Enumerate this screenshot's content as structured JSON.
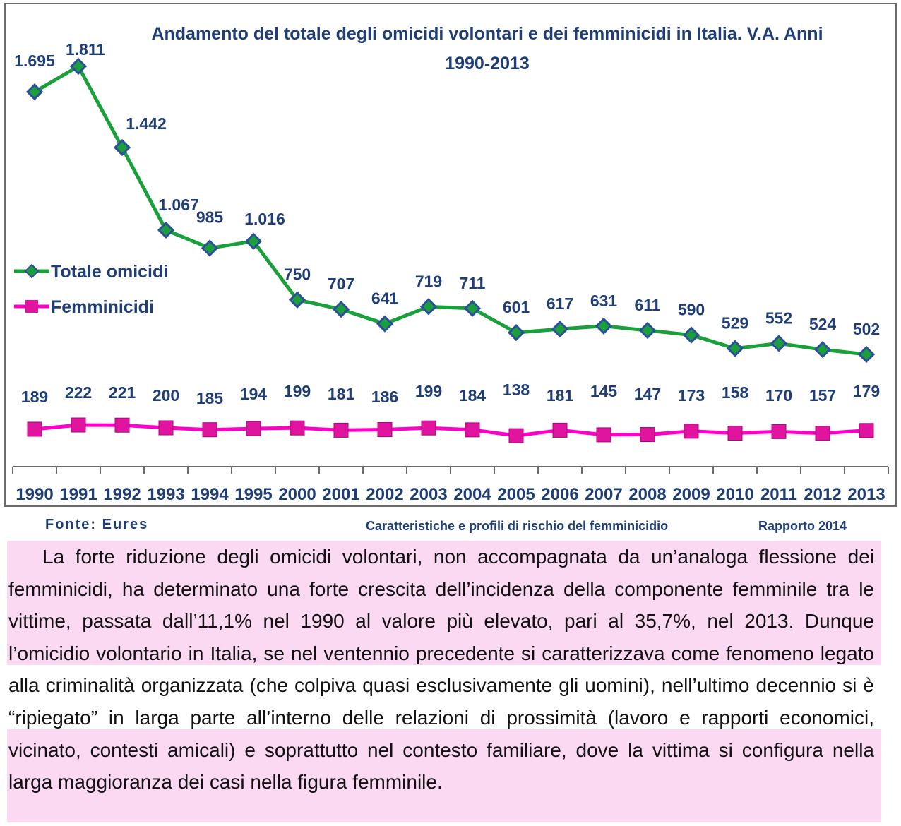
{
  "chart_data": {
    "type": "line",
    "title_lines": [
      "Andamento del totale degli omicidi volontari e dei femminicidi in Italia. V.A. Anni",
      "1990-2013"
    ],
    "categories": [
      "1990",
      "1991",
      "1992",
      "1993",
      "1994",
      "1995",
      "2000",
      "2001",
      "2002",
      "2003",
      "2004",
      "2005",
      "2006",
      "2007",
      "2008",
      "2009",
      "2010",
      "2011",
      "2012",
      "2013"
    ],
    "series": [
      {
        "name": "Totale omicidi",
        "color": "#1aa03a",
        "marker": "diamond",
        "marker_color": "#2c4e9b",
        "values": [
          1695,
          1811,
          1442,
          1067,
          985,
          1016,
          750,
          707,
          641,
          719,
          711,
          601,
          617,
          631,
          611,
          590,
          529,
          552,
          524,
          502
        ],
        "labels": [
          "1.695",
          "1.811",
          "1.442",
          "1.067",
          "985",
          "1.016",
          "750",
          "707",
          "641",
          "719",
          "711",
          "601",
          "617",
          "631",
          "611",
          "590",
          "529",
          "552",
          "524",
          "502"
        ]
      },
      {
        "name": "Femminicidi",
        "color": "#ff00c8",
        "marker": "square",
        "marker_color": "#e0149e",
        "values": [
          189,
          222,
          221,
          200,
          185,
          194,
          199,
          181,
          186,
          199,
          184,
          138,
          181,
          145,
          147,
          173,
          158,
          170,
          157,
          179
        ],
        "labels": [
          "189",
          "222",
          "221",
          "200",
          "185",
          "194",
          "199",
          "181",
          "186",
          "199",
          "184",
          "138",
          "181",
          "145",
          "147",
          "173",
          "158",
          "170",
          "157",
          "179"
        ]
      }
    ],
    "xlabel": "",
    "ylabel": "",
    "y_axis_visible": false,
    "grid": false,
    "legend_position": "left"
  },
  "footer": {
    "source": "Fonte: Eures",
    "report_title": "Caratteristiche e profili di rischio del femminicidio",
    "report_year": "Rapporto 2014"
  },
  "paragraph": "La forte riduzione degli omicidi volontari, non accompagnata da un’analoga flessione dei femminicidi, ha determinato una forte crescita dell’incidenza della componente femminile tra le vittime, passata dall’11,1% nel 1990 al valore più elevato, pari al 35,7%, nel 2013. Dunque l’omicidio volontario in Italia, se nel ventennio precedente si caratterizzava come fenomeno legato alla criminalità organizzata (che colpiva quasi esclusivamente gli uomini), nell’ultimo decennio si è “ripiegato” in larga parte all’interno delle relazioni di prossimità (lavoro e rapporti economici, vicinato, contesti amicali) e soprattutto nel contesto familiare, dove la vittima si configura nella larga maggioranza dei casi nella figura femminile."
}
